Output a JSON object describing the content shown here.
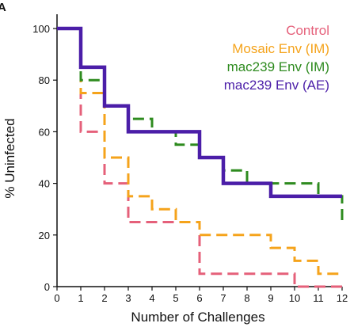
{
  "panel_label": "A",
  "chart_data": {
    "type": "line",
    "step": true,
    "xlabel": "Number of Challenges",
    "ylabel": "% Uninfected",
    "xlim": [
      0,
      12
    ],
    "ylim": [
      0,
      100
    ],
    "x_ticks": [
      0,
      1,
      2,
      3,
      4,
      5,
      6,
      7,
      8,
      9,
      10,
      11,
      12
    ],
    "y_ticks": [
      0,
      20,
      40,
      60,
      80,
      100
    ],
    "grid": false,
    "legend_placement": "top-right",
    "series": [
      {
        "name": "Control",
        "color": "#e5607a",
        "dashed": true,
        "x": [
          0,
          1,
          2,
          3,
          6,
          10,
          12
        ],
        "y": [
          100,
          60,
          40,
          25,
          5,
          0,
          0
        ]
      },
      {
        "name": "Mosaic Env (IM)",
        "color": "#f5a31b",
        "dashed": true,
        "x": [
          0,
          1,
          2,
          3,
          4,
          5,
          6,
          9,
          10,
          11,
          12
        ],
        "y": [
          100,
          75,
          50,
          35,
          30,
          25,
          20,
          15,
          10,
          5,
          5
        ]
      },
      {
        "name": "mac239 Env (IM)",
        "color": "#2e8b1f",
        "dashed": true,
        "x": [
          0,
          1,
          2,
          3,
          4,
          5,
          6,
          7,
          8,
          9,
          11,
          12
        ],
        "y": [
          100,
          80,
          70,
          65,
          60,
          55,
          50,
          45,
          40,
          40,
          35,
          25
        ]
      },
      {
        "name": "mac239 Env (AE)",
        "color": "#4b1ea8",
        "dashed": false,
        "x": [
          0,
          1,
          2,
          3,
          6,
          7,
          9,
          12
        ],
        "y": [
          100,
          85,
          70,
          60,
          50,
          40,
          35,
          35
        ]
      }
    ]
  }
}
